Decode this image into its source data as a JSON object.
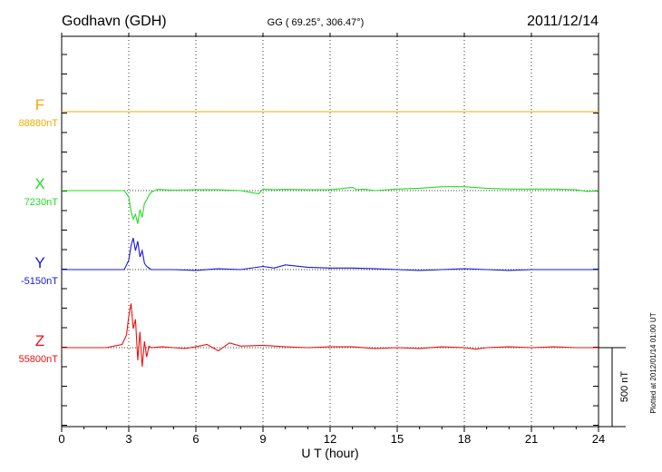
{
  "header": {
    "station": "Godhavn (GDH)",
    "coords": "GG ( 69.25°, 306.47°)",
    "date": "2011/12/14"
  },
  "footer": {
    "plotted_note": "Plotted at 2012/01/14 01:00 UT"
  },
  "colors": {
    "F": "#f5a800",
    "X": "#22dd22",
    "Y": "#1818d8",
    "Z": "#ee1111",
    "axis": "#000000"
  },
  "chart_data": {
    "type": "line",
    "xlabel": "U T (hour)",
    "xlim": [
      0,
      24
    ],
    "xticks": [
      "0",
      "3",
      "6",
      "9",
      "12",
      "15",
      "18",
      "21",
      "24"
    ],
    "scale_bar": {
      "label": "500 nT",
      "value_nT": 500
    },
    "series": [
      {
        "name": "F",
        "baseline_label": "88880nT",
        "x": [
          0,
          24
        ],
        "y": [
          0,
          0
        ]
      },
      {
        "name": "X",
        "baseline_label": "7230nT",
        "x": [
          0,
          1,
          2,
          2.8,
          3.0,
          3.1,
          3.2,
          3.3,
          3.4,
          3.5,
          3.6,
          3.7,
          3.8,
          3.9,
          4.0,
          4.3,
          4.6,
          5.0,
          6.0,
          7.0,
          8.0,
          8.8,
          9.0,
          9.5,
          10.0,
          11.0,
          12.0,
          13.0,
          13.2,
          13.5,
          14.0,
          15.0,
          16.0,
          17.0,
          18.0,
          19.0,
          20.0,
          21.0,
          22.0,
          23.0,
          23.5,
          24.0
        ],
        "y": [
          0,
          0,
          0,
          0,
          -40,
          -130,
          -180,
          -150,
          -210,
          -120,
          -170,
          -80,
          -60,
          -30,
          -10,
          8,
          5,
          3,
          5,
          5,
          0,
          -20,
          10,
          5,
          8,
          5,
          5,
          20,
          5,
          10,
          0,
          10,
          15,
          25,
          25,
          15,
          10,
          10,
          10,
          5,
          -5,
          0
        ]
      },
      {
        "name": "Y",
        "baseline_label": "-5150nT",
        "x": [
          0,
          1,
          2,
          2.8,
          3.0,
          3.1,
          3.2,
          3.3,
          3.4,
          3.5,
          3.6,
          3.7,
          3.8,
          4.0,
          4.5,
          5.0,
          6.0,
          7.0,
          8.0,
          9.0,
          9.5,
          10.0,
          11.0,
          12.0,
          13.0,
          14.0,
          15.0,
          16.0,
          17.0,
          18.0,
          19.0,
          20.0,
          21.0,
          22.0,
          23.0,
          24.0
        ],
        "y": [
          0,
          0,
          0,
          0,
          60,
          150,
          200,
          120,
          180,
          80,
          120,
          40,
          20,
          0,
          0,
          0,
          -5,
          5,
          0,
          20,
          10,
          30,
          15,
          10,
          10,
          5,
          0,
          -5,
          0,
          5,
          0,
          -5,
          0,
          0,
          0,
          0
        ]
      },
      {
        "name": "Z",
        "baseline_label": "55800nT",
        "x": [
          0,
          1,
          2,
          2.7,
          2.9,
          3.0,
          3.1,
          3.2,
          3.3,
          3.4,
          3.5,
          3.6,
          3.7,
          3.8,
          3.9,
          4.0,
          4.5,
          5.0,
          5.5,
          6.0,
          6.5,
          7.0,
          7.5,
          8.0,
          9.0,
          10.0,
          11.0,
          12.0,
          13.0,
          14.0,
          15.0,
          16.0,
          17.0,
          18.0,
          18.5,
          19.0,
          20.0,
          21.0,
          22.0,
          23.0,
          24.0
        ],
        "y": [
          0,
          0,
          0,
          20,
          80,
          200,
          280,
          120,
          180,
          -80,
          100,
          -120,
          40,
          -60,
          10,
          0,
          5,
          0,
          -5,
          5,
          20,
          -20,
          30,
          10,
          15,
          5,
          0,
          5,
          5,
          -5,
          0,
          -5,
          5,
          0,
          -10,
          0,
          5,
          0,
          5,
          0,
          0
        ]
      }
    ]
  }
}
